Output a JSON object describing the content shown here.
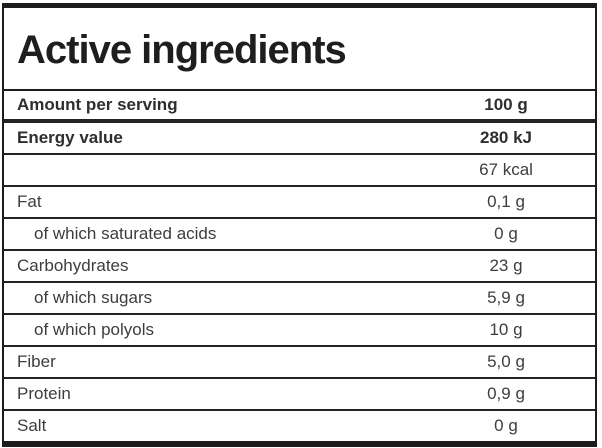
{
  "title": "Active ingredients",
  "table": {
    "header": {
      "label": "Amount per serving",
      "value": "100 g"
    },
    "rows": [
      {
        "label": "Energy value",
        "value": "280 kJ"
      },
      {
        "label": "",
        "value": "67 kcal"
      },
      {
        "label": "Fat",
        "value": "0,1 g"
      },
      {
        "label": "of which saturated acids",
        "value": "0 g"
      },
      {
        "label": "Carbohydrates",
        "value": "23 g"
      },
      {
        "label": "of which sugars",
        "value": "5,9 g"
      },
      {
        "label": "of which polyols",
        "value": "10 g"
      },
      {
        "label": "Fiber",
        "value": "5,0 g"
      },
      {
        "label": "Protein",
        "value": "0,9 g"
      },
      {
        "label": "Salt",
        "value": "0 g"
      }
    ]
  },
  "colors": {
    "border": "#1c1c1c",
    "title_text": "#1e1e1e",
    "row_text": "#3d3d3d",
    "background": "#ffffff"
  }
}
